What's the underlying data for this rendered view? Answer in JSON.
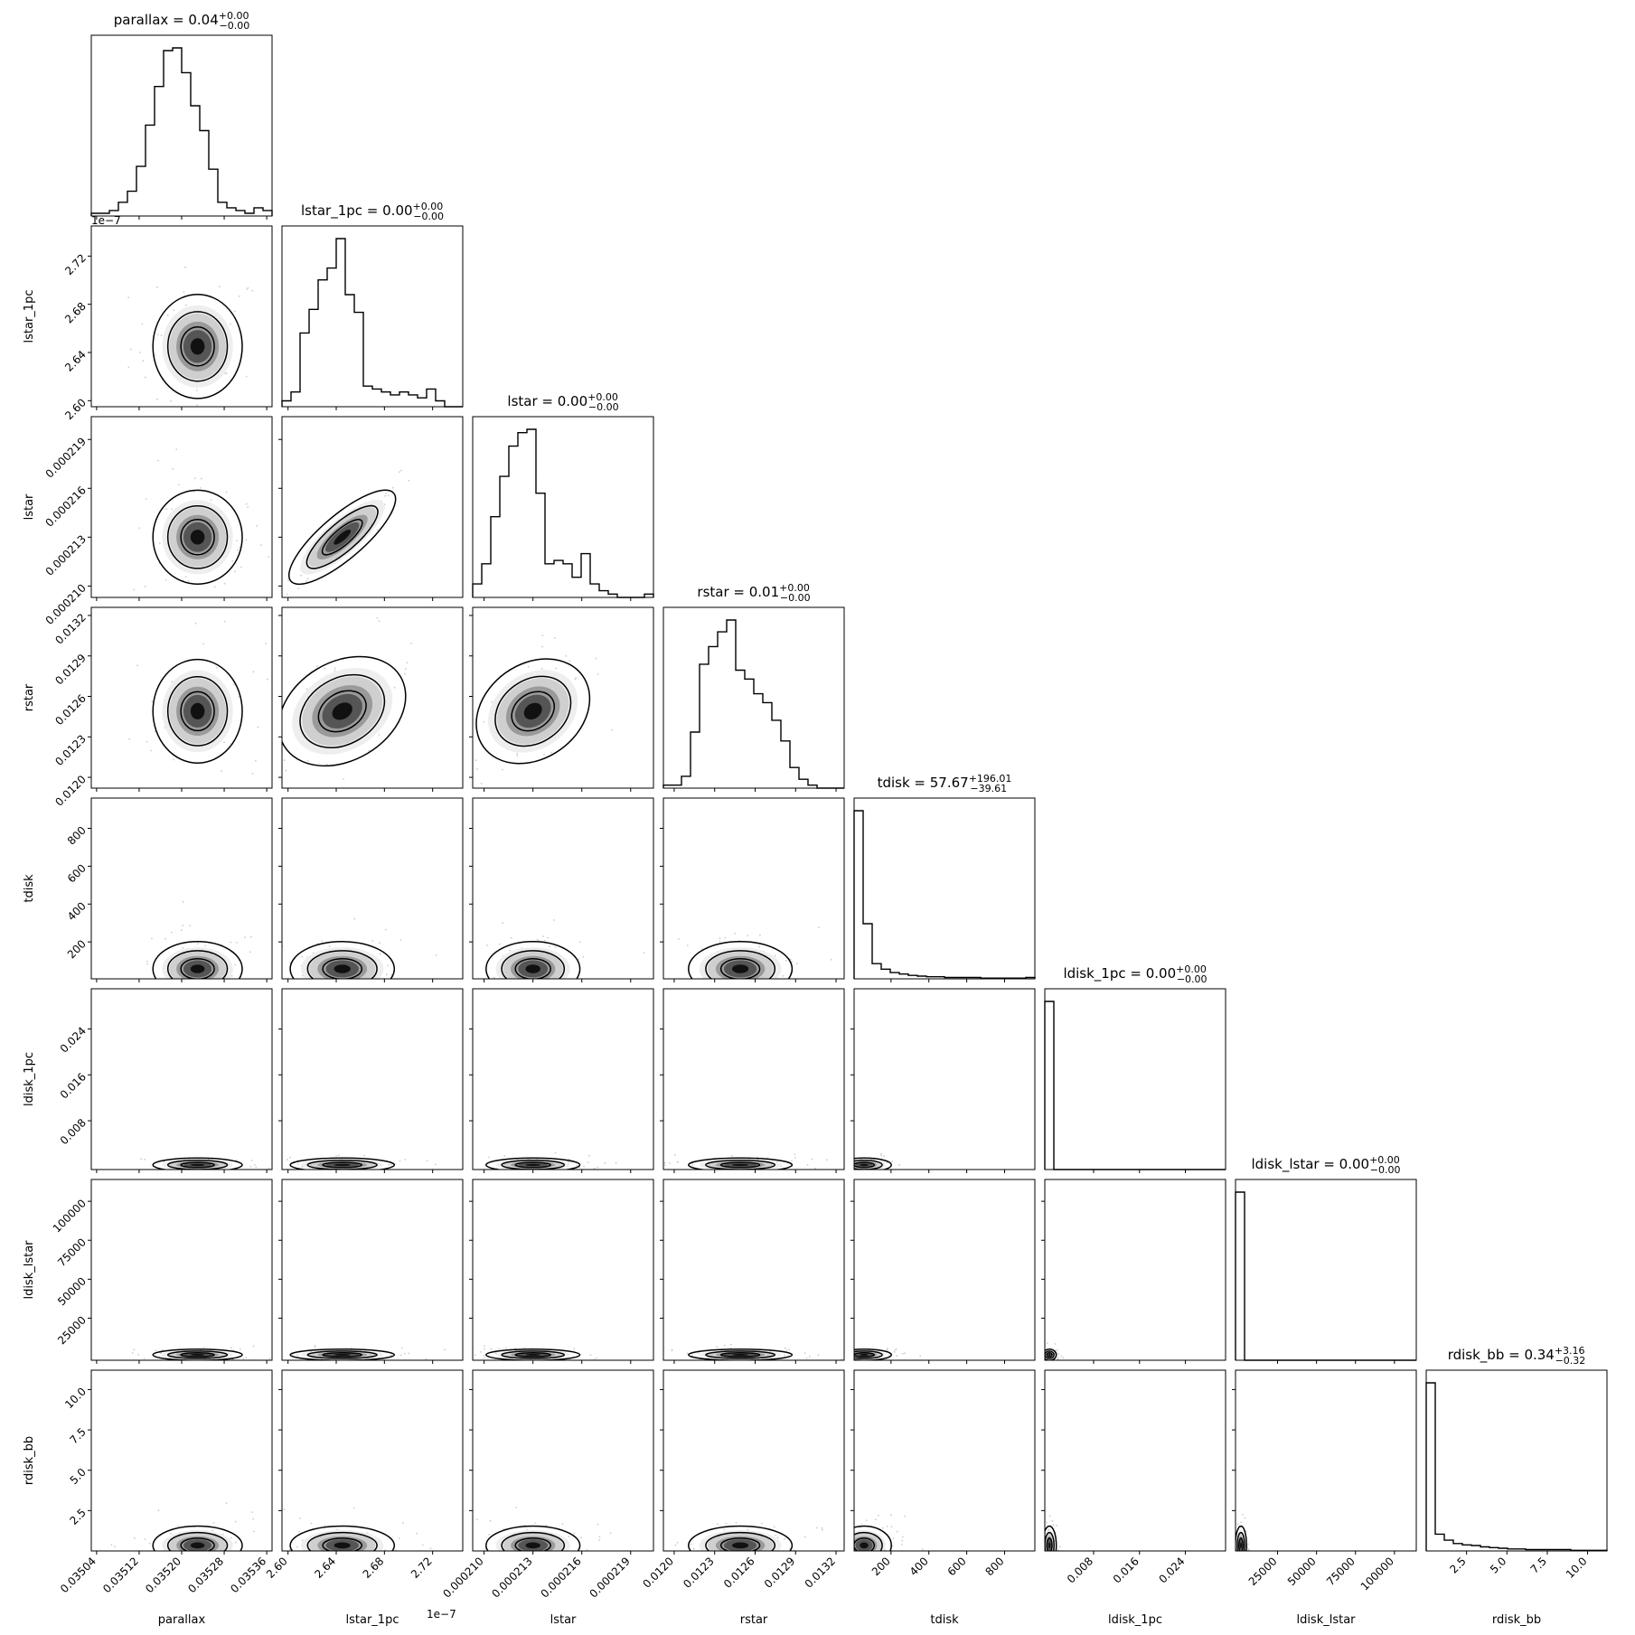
{
  "chart_data": {
    "type": "corner",
    "parameters": [
      {
        "name": "parallax",
        "title": "parallax = 0.04",
        "median": "0.04",
        "plus": "+0.00",
        "minus": "−0.00",
        "range": [
          0.03503,
          0.03537
        ],
        "ticks": [
          "0.03504",
          "0.03512",
          "0.03520",
          "0.03528",
          "0.03536"
        ],
        "tick_values": [
          0.03504,
          0.03512,
          0.0352,
          0.03528,
          0.03536
        ],
        "offset": "",
        "center": 0.03523,
        "sigma": 3.5e-05
      },
      {
        "name": "lstar_1pc",
        "title": "lstar_1pc = 0.00",
        "median": "0.00",
        "plus": "+0.00",
        "minus": "−0.00",
        "range": [
          2.595,
          2.745
        ],
        "ticks": [
          "2.60",
          "2.64",
          "2.68",
          "2.72"
        ],
        "tick_values": [
          2.6,
          2.64,
          2.68,
          2.72
        ],
        "offset": "1e−7",
        "center": 2.645,
        "sigma": 0.018
      },
      {
        "name": "lstar",
        "title": "lstar = 0.00",
        "median": "0.00",
        "plus": "+0.00",
        "minus": "−0.00",
        "range": [
          0.0002093,
          0.0002204
        ],
        "ticks": [
          "0.000210",
          "0.000213",
          "0.000216",
          "0.000219"
        ],
        "tick_values": [
          0.00021,
          0.000213,
          0.000216,
          0.000219
        ],
        "offset": "",
        "center": 0.000213,
        "sigma": 1.2e-06
      },
      {
        "name": "rstar",
        "title": "rstar = 0.01",
        "median": "0.01",
        "plus": "+0.00",
        "minus": "−0.00",
        "range": [
          0.01192,
          0.01326
        ],
        "ticks": [
          "0.0120",
          "0.0123",
          "0.0126",
          "0.0129",
          "0.0132"
        ],
        "tick_values": [
          0.012,
          0.0123,
          0.0126,
          0.0129,
          0.0132
        ],
        "offset": "",
        "center": 0.01249,
        "sigma": 0.00016
      },
      {
        "name": "tdisk",
        "title": "tdisk = 57.67",
        "median": "57.67",
        "plus": "+196.01",
        "minus": "−39.61",
        "range": [
          5,
          960
        ],
        "ticks": [
          "200",
          "400",
          "600",
          "800"
        ],
        "tick_values": [
          200,
          400,
          600,
          800
        ],
        "offset": "",
        "center": 57.67,
        "sigma": 60
      },
      {
        "name": "ldisk_1pc",
        "title": "ldisk_1pc = 0.00",
        "median": "0.00",
        "plus": "+0.00",
        "minus": "−0.00",
        "range": [
          -0.0005,
          0.031
        ],
        "ticks": [
          "0.008",
          "0.016",
          "0.024"
        ],
        "tick_values": [
          0.008,
          0.016,
          0.024
        ],
        "offset": "",
        "center": 0.0003,
        "sigma": 0.0005
      },
      {
        "name": "ldisk_lstar",
        "title": "ldisk_lstar = 0.00",
        "median": "0.00",
        "plus": "+0.00",
        "minus": "−0.00",
        "range": [
          -2000,
          114000
        ],
        "ticks": [
          "25000",
          "50000",
          "75000",
          "100000"
        ],
        "tick_values": [
          25000,
          50000,
          75000,
          100000
        ],
        "offset": "",
        "center": 1500,
        "sigma": 1500
      },
      {
        "name": "rdisk_bb",
        "title": "rdisk_bb = 0.34",
        "median": "0.34",
        "plus": "+3.16",
        "minus": "−0.32",
        "range": [
          0.0,
          11.2
        ],
        "ticks": [
          "2.5",
          "5.0",
          "7.5",
          "10.0"
        ],
        "tick_values": [
          2.5,
          5.0,
          7.5,
          10.0
        ],
        "offset": "",
        "center": 0.34,
        "sigma": 0.5
      }
    ],
    "histograms": [
      [
        1,
        1,
        2,
        5,
        9,
        18,
        33,
        47,
        60,
        61,
        52,
        40,
        31,
        17,
        5,
        3,
        2,
        1,
        3,
        2
      ],
      [
        2,
        5,
        25,
        33,
        43,
        47,
        57,
        38,
        32,
        7,
        6,
        5,
        4,
        5,
        4,
        3,
        6,
        2,
        0,
        0
      ],
      [
        4,
        10,
        24,
        36,
        45,
        49,
        50,
        31,
        10,
        11,
        10,
        6,
        13,
        4,
        2,
        1,
        0,
        0,
        0,
        1
      ],
      [
        1,
        1,
        4,
        19,
        42,
        48,
        53,
        57,
        40,
        37,
        32,
        29,
        23,
        16,
        7,
        3,
        1,
        0,
        0,
        0
      ],
      [
        244,
        80,
        22,
        14,
        9,
        7,
        5,
        4,
        3,
        3,
        2,
        2,
        2,
        2,
        1,
        1,
        1,
        1,
        1,
        2
      ],
      [
        300,
        0,
        0,
        0,
        0,
        0,
        0,
        0,
        0,
        0,
        0,
        0,
        0,
        0,
        0,
        0,
        0,
        0,
        0,
        0
      ],
      [
        300,
        0,
        0,
        0,
        0,
        0,
        0,
        0,
        0,
        0,
        0,
        0,
        0,
        0,
        0,
        0,
        0,
        0,
        0,
        0
      ],
      [
        250,
        25,
        16,
        11,
        9,
        8,
        6,
        5,
        4,
        3,
        3,
        2,
        2,
        2,
        2,
        2,
        1,
        1,
        1,
        1
      ]
    ],
    "correlations": {
      "1-2": 0.95,
      "1-3": 0.6,
      "2-3": 0.65
    },
    "grid": false,
    "legend": "none"
  }
}
